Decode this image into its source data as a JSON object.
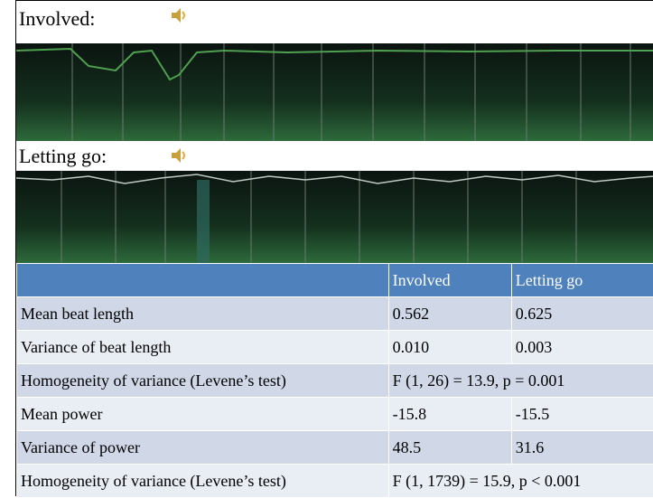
{
  "sections": [
    {
      "label": "Involved:"
    },
    {
      "label": "Letting go:"
    }
  ],
  "table": {
    "header": [
      "",
      "Involved",
      "Letting go"
    ],
    "rows": [
      [
        "Mean beat length",
        "0.562",
        "0.625"
      ],
      [
        "Variance of beat length",
        "0.010",
        "0.003"
      ],
      [
        "Homogeneity of variance (Levene’s test)",
        "F (1, 26) = 13.9, p = 0.001"
      ],
      [
        "Mean power",
        "-15.8",
        "-15.5"
      ],
      [
        "Variance of power",
        "48.5",
        "31.6"
      ],
      [
        "Homogeneity of variance (Levene’s test)",
        "F (1, 1739) = 15.9, p < 0.001"
      ]
    ]
  }
}
